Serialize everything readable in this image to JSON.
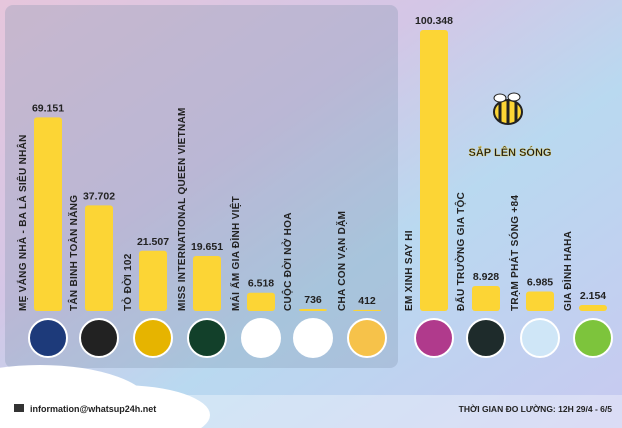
{
  "chart_data": {
    "type": "bar",
    "categories": [
      "MẸ VẮNG NHÀ - BA LÀ SIÊU NHÂN",
      "TÂN BINH TOÀN NĂNG",
      "TỎ ĐỜI 102",
      "MISS INTERNATIONAL QUEEN VIETNAM",
      "MÁI ẤM GIA ĐÌNH VIỆT",
      "CUỘC ĐỜI NỞ HOA",
      "CHA CON VẠN DẶM",
      "EM XINH SAY HI",
      "ĐẤU TRƯỜNG GIA TỘC",
      "TRẠM PHÁT SÓNG +84",
      "GIA ĐÌNH HAHA"
    ],
    "values": [
      69151,
      37702,
      21507,
      19651,
      6518,
      736,
      412,
      100348,
      8928,
      6985,
      2154
    ],
    "value_labels": [
      "69.151",
      "37.702",
      "21.507",
      "19.651",
      "6.518",
      "736",
      "412",
      "100.348",
      "8.928",
      "6.985",
      "2.154"
    ],
    "color": "#fcd535",
    "annotation": "SẮP LÊN SÓNG",
    "footer_left": "information@whatsup24h.net",
    "footer_right": "THỜI GIAN ĐO LƯỜNG: 12H 29/4 - 6/5"
  }
}
